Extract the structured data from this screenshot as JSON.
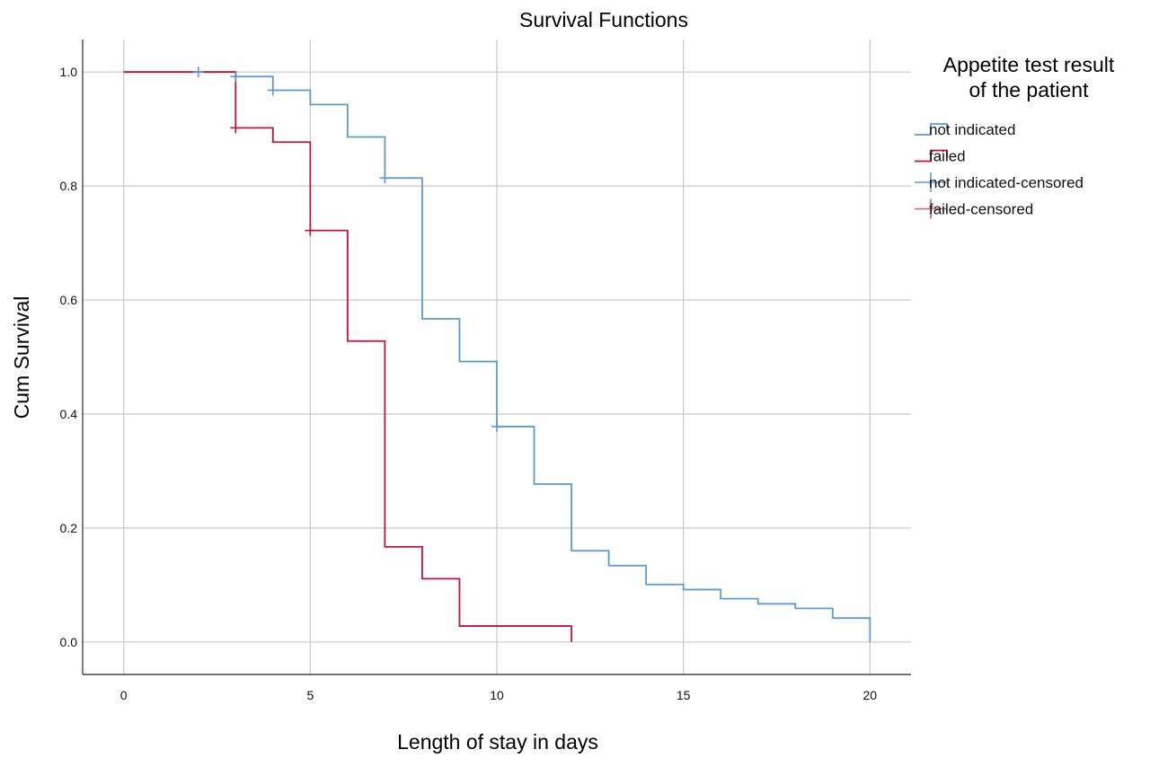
{
  "chart_data": {
    "type": "line",
    "title": "Survival Functions",
    "xlabel": "Length of stay in days",
    "ylabel": "Cum Survival",
    "xlim": [
      -1.1,
      21.1
    ],
    "ylim": [
      -0.057,
      1.057
    ],
    "x_ticks": [
      "0",
      "5",
      "10",
      "15",
      "20"
    ],
    "y_ticks": [
      "0.0",
      "0.2",
      "0.4",
      "0.6",
      "0.8",
      "1.0"
    ],
    "grid": true,
    "step": true,
    "legend_title_line1": "Appetite test result",
    "legend_title_line2": "of the patient",
    "legend_position": "right",
    "series": [
      {
        "name": "not indicated",
        "color": "#5b9bd5",
        "x": [
          0,
          3,
          4,
          5,
          6,
          7,
          8,
          9,
          10,
          11,
          12,
          13,
          14,
          15,
          16,
          17,
          18,
          19,
          20,
          20
        ],
        "y": [
          1.0,
          0.992,
          0.968,
          0.943,
          0.886,
          0.814,
          0.567,
          0.492,
          0.378,
          0.277,
          0.16,
          0.134,
          0.101,
          0.092,
          0.076,
          0.067,
          0.059,
          0.042,
          0.042,
          0.0
        ],
        "censored": [
          [
            2,
            1.0
          ],
          [
            3,
            0.992
          ],
          [
            4,
            0.968
          ],
          [
            7,
            0.814
          ],
          [
            10,
            0.378
          ]
        ]
      },
      {
        "name": "failed",
        "color": "#c0143c",
        "x": [
          0,
          3,
          4,
          5,
          6,
          7,
          8,
          9,
          12,
          12
        ],
        "y": [
          1.0,
          0.902,
          0.877,
          0.722,
          0.528,
          0.167,
          0.111,
          0.028,
          0.028,
          0.0
        ],
        "censored": [
          [
            3,
            0.902
          ],
          [
            5,
            0.722
          ]
        ]
      }
    ],
    "legend": [
      {
        "label": "not indicated",
        "kind": "step",
        "color": "#5b9bd5"
      },
      {
        "label": "failed",
        "kind": "step",
        "color": "#c0143c"
      },
      {
        "label": "not indicated-censored",
        "kind": "cross",
        "color": "#5b9bd5"
      },
      {
        "label": "failed-censored",
        "kind": "cross",
        "color": "#e8526d"
      }
    ]
  }
}
